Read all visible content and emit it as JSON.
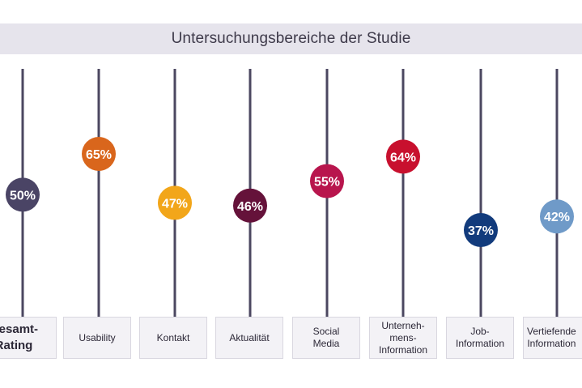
{
  "header": {
    "title": "Untersuchungsbereiche der Studie"
  },
  "chart_data": {
    "type": "scatter",
    "title": "Untersuchungsbereiche der Studie",
    "categories": [
      "Gesamt-\nRating",
      "Usability",
      "Kontakt",
      "Aktualität",
      "Social\nMedia",
      "Unterneh-\nmens-\nInformation",
      "Job-\nInformation",
      "Vertiefende\nInformation"
    ],
    "values": [
      50,
      65,
      47,
      46,
      55,
      64,
      37,
      42
    ],
    "value_labels": [
      "50%",
      "65%",
      "47%",
      "46%",
      "55%",
      "64%",
      "37%",
      "42%"
    ],
    "colors": [
      "#4a4465",
      "#d9661c",
      "#f2a61a",
      "#65123a",
      "#b8154d",
      "#c8102e",
      "#123b7c",
      "#6f9ac8"
    ],
    "line_color": "#4b4760",
    "ylim": [
      30,
      70
    ],
    "grid": false
  }
}
